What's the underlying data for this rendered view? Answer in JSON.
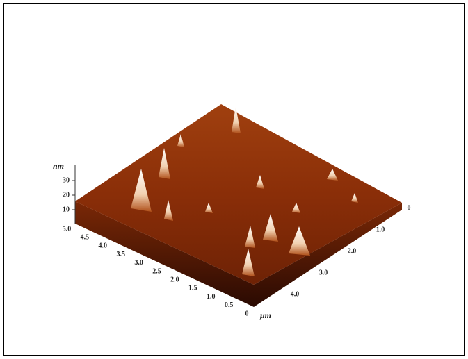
{
  "z_axis": {
    "label": "nm",
    "ticks": [
      "10",
      "20",
      "30"
    ]
  },
  "left_axis": {
    "ticks": [
      "5.0",
      "4.5",
      "4.0",
      "3.5",
      "3.0",
      "2.5",
      "2.0",
      "1.5",
      "1.0",
      "0.5",
      "0"
    ]
  },
  "right_axis": {
    "label": "μm",
    "ticks": [
      "0",
      "1.0",
      "2.0",
      "3.0",
      "4.0"
    ]
  }
}
